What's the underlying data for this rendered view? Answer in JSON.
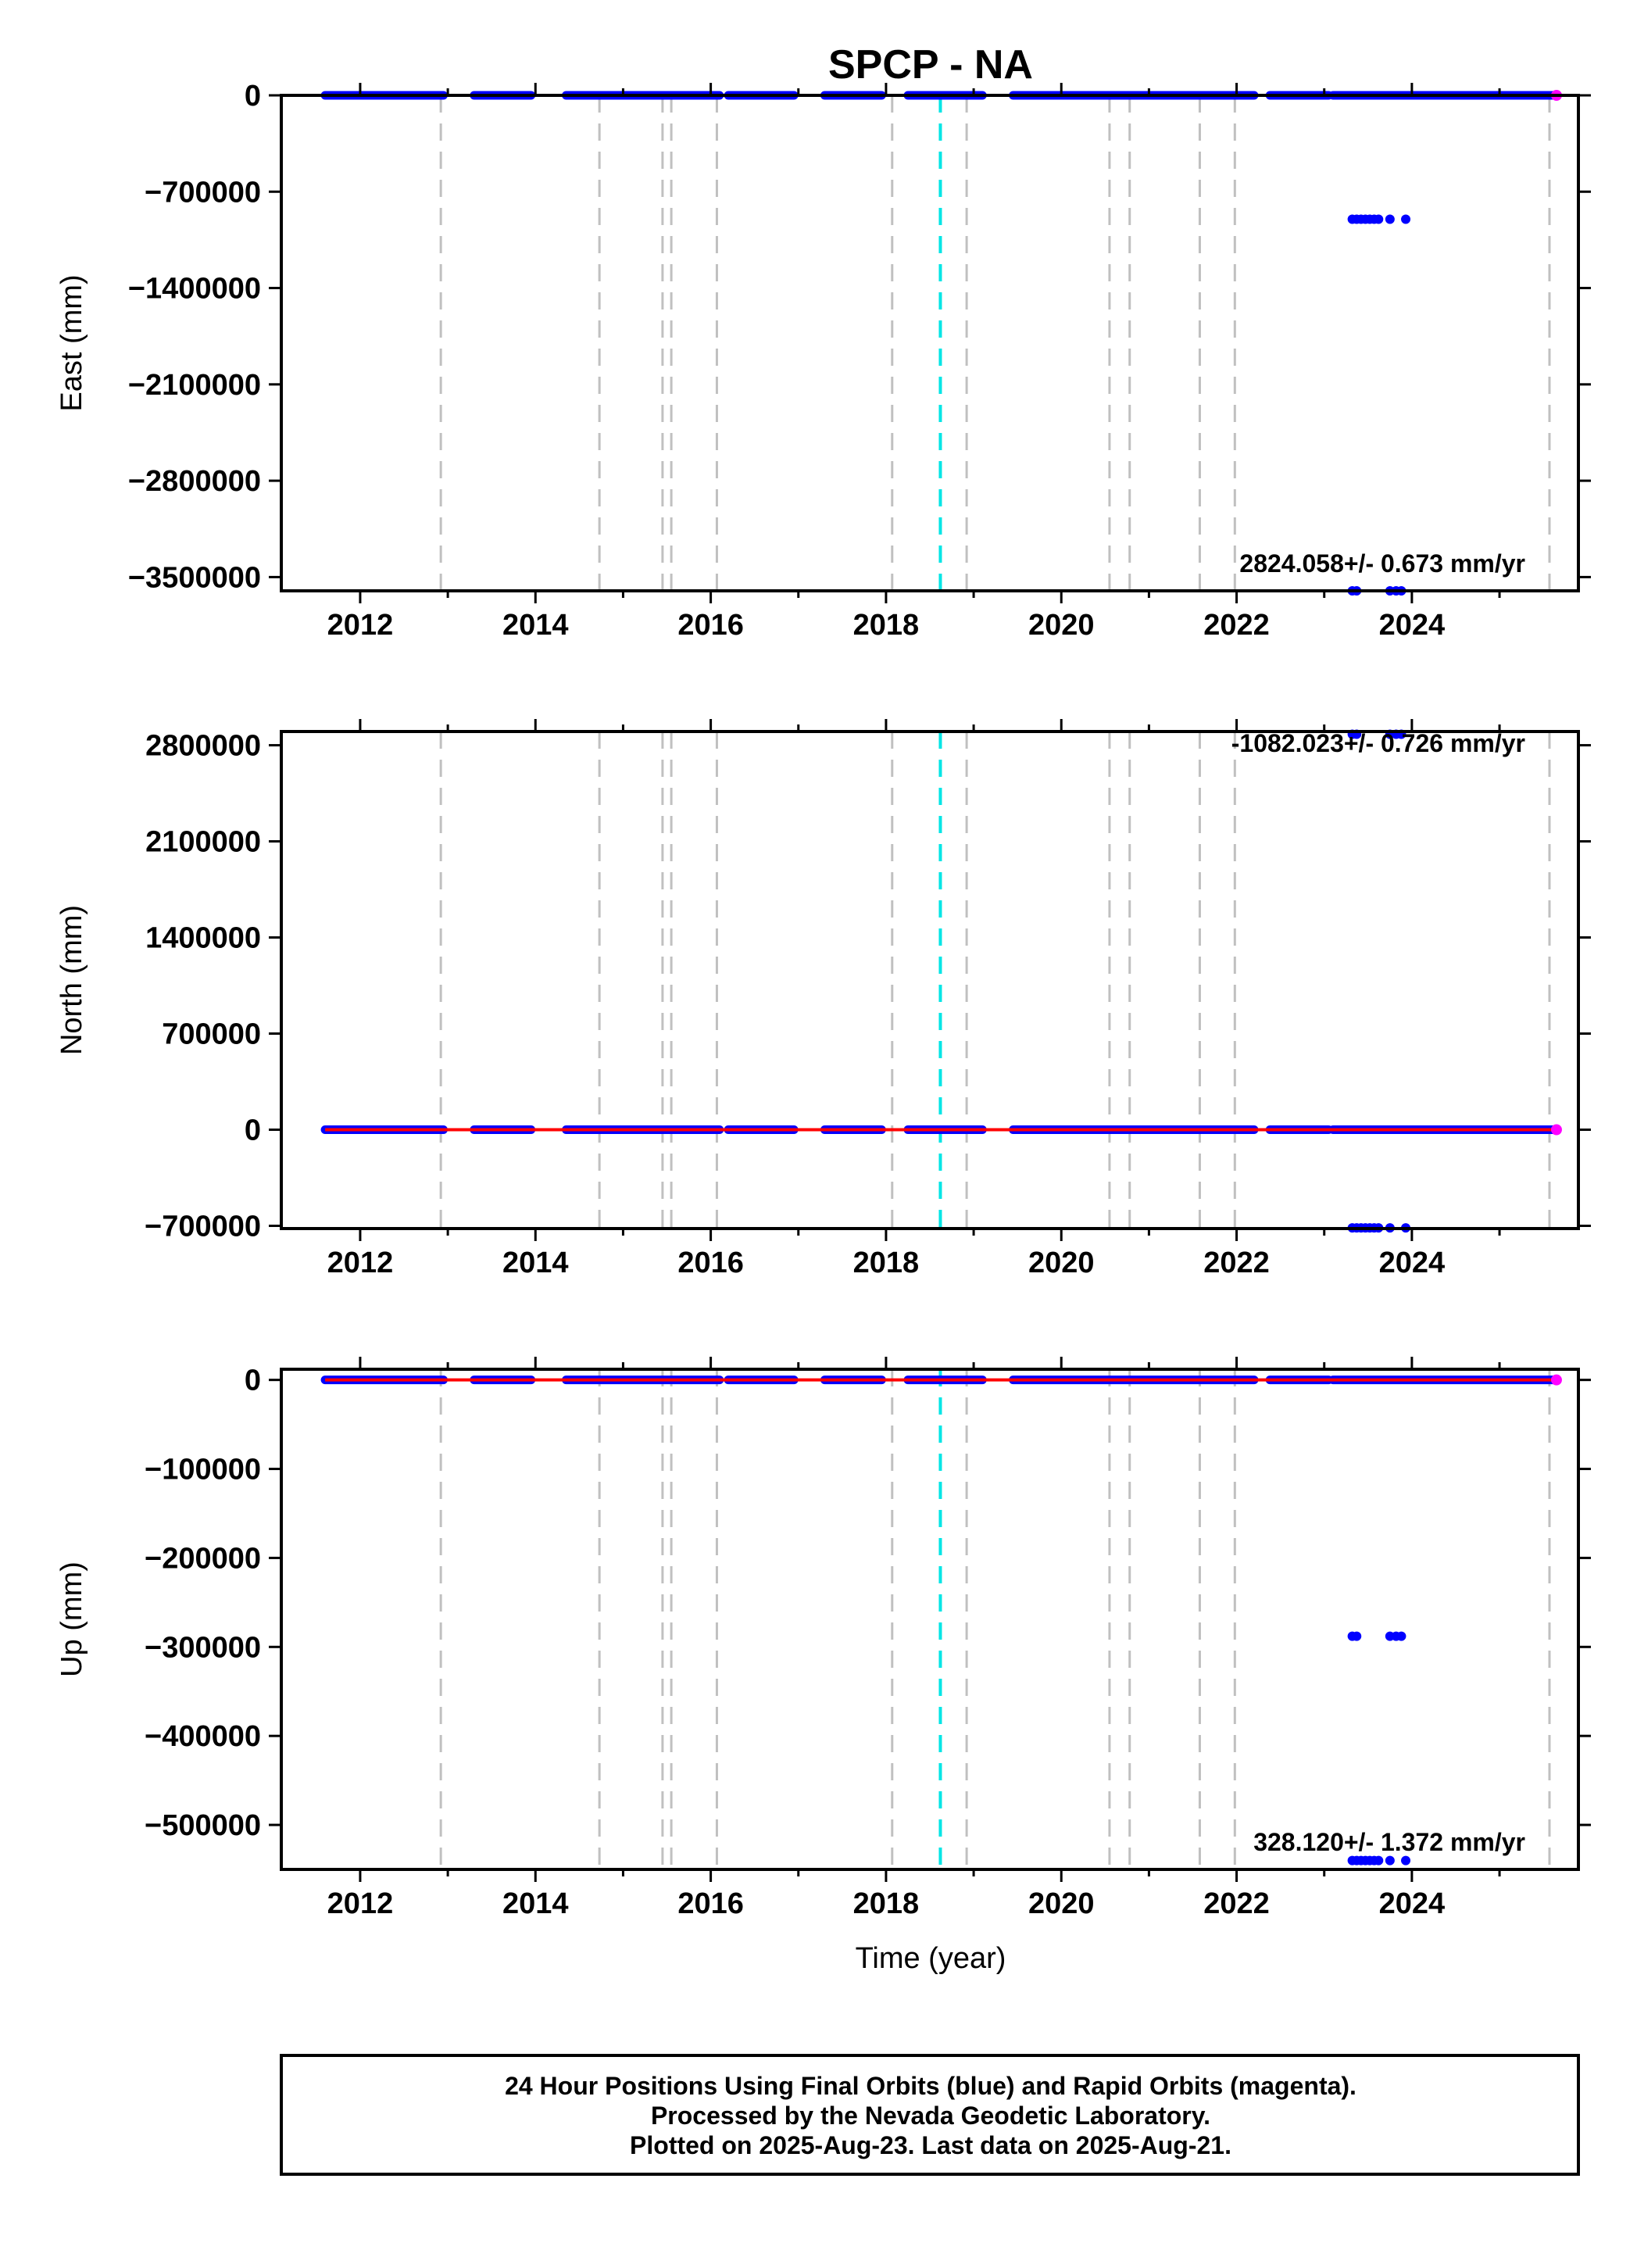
{
  "chart_data": {
    "type": "scatter",
    "title": "SPCP - NA",
    "xlabel": "Time (year)",
    "x_ticks": [
      2012,
      2014,
      2016,
      2018,
      2020,
      2022,
      2024
    ],
    "xlim": [
      2011.1,
      2025.9
    ],
    "data_span": [
      2011.6,
      2025.65
    ],
    "segments": [
      [
        2011.6,
        2012.95
      ],
      [
        2013.3,
        2013.95
      ],
      [
        2014.35,
        2016.1
      ],
      [
        2016.2,
        2016.95
      ],
      [
        2017.3,
        2017.95
      ],
      [
        2018.25,
        2019.1
      ],
      [
        2019.45,
        2022.2
      ],
      [
        2022.38,
        2023.05
      ],
      [
        2023.1,
        2025.65
      ]
    ],
    "event_lines": {
      "gray": [
        2012.92,
        2014.73,
        2015.45,
        2015.55,
        2016.07,
        2018.07,
        2018.92,
        2020.55,
        2020.78,
        2021.58,
        2021.98,
        2025.57
      ],
      "cyan": [
        2018.62
      ]
    },
    "panels": [
      {
        "id": "east",
        "ylabel": "East (mm)",
        "ylim": [
          -3600000,
          0
        ],
        "y_ticks": [
          0,
          -700000,
          -1400000,
          -2100000,
          -2800000,
          -3500000
        ],
        "y_tick_labels": [
          "0",
          "−700000",
          "−1400000",
          "−2100000",
          "−2800000",
          "−3500000"
        ],
        "rate_text": "2824.058+/- 0.673 mm/yr",
        "outliers": [
          {
            "t": 2023.32,
            "v": -900000
          },
          {
            "t": 2023.37,
            "v": -900000
          },
          {
            "t": 2023.42,
            "v": -900000
          },
          {
            "t": 2023.47,
            "v": -900000
          },
          {
            "t": 2023.52,
            "v": -900000
          },
          {
            "t": 2023.57,
            "v": -900000
          },
          {
            "t": 2023.62,
            "v": -900000
          },
          {
            "t": 2023.75,
            "v": -900000
          },
          {
            "t": 2023.93,
            "v": -900000
          },
          {
            "t": 2023.32,
            "v": -3600000
          },
          {
            "t": 2023.37,
            "v": -3600000
          },
          {
            "t": 2023.75,
            "v": -3600000
          },
          {
            "t": 2023.82,
            "v": -3600000
          },
          {
            "t": 2023.88,
            "v": -3600000
          }
        ]
      },
      {
        "id": "north",
        "ylabel": "North (mm)",
        "ylim": [
          -720000,
          2900000
        ],
        "y_ticks": [
          2800000,
          2100000,
          1400000,
          700000,
          0,
          -700000
        ],
        "y_tick_labels": [
          "2800000",
          "2100000",
          "1400000",
          "700000",
          "0",
          "−700000"
        ],
        "rate_text": "-1082.023+/- 0.726 mm/yr",
        "outliers": [
          {
            "t": 2023.32,
            "v": 2880000
          },
          {
            "t": 2023.37,
            "v": 2880000
          },
          {
            "t": 2023.75,
            "v": 2880000
          },
          {
            "t": 2023.82,
            "v": 2880000
          },
          {
            "t": 2023.88,
            "v": 2880000
          },
          {
            "t": 2023.32,
            "v": -715000
          },
          {
            "t": 2023.37,
            "v": -715000
          },
          {
            "t": 2023.42,
            "v": -715000
          },
          {
            "t": 2023.47,
            "v": -715000
          },
          {
            "t": 2023.52,
            "v": -715000
          },
          {
            "t": 2023.57,
            "v": -715000
          },
          {
            "t": 2023.62,
            "v": -715000
          },
          {
            "t": 2023.75,
            "v": -715000
          },
          {
            "t": 2023.93,
            "v": -715000
          }
        ]
      },
      {
        "id": "up",
        "ylabel": "Up (mm)",
        "ylim": [
          -550000,
          12000
        ],
        "y_ticks": [
          0,
          -100000,
          -200000,
          -300000,
          -400000,
          -500000
        ],
        "y_tick_labels": [
          "0",
          "−100000",
          "−200000",
          "−300000",
          "−400000",
          "−500000"
        ],
        "rate_text": "328.120+/- 1.372 mm/yr",
        "outliers": [
          {
            "t": 2023.32,
            "v": -288000
          },
          {
            "t": 2023.37,
            "v": -288000
          },
          {
            "t": 2023.75,
            "v": -288000
          },
          {
            "t": 2023.82,
            "v": -288000
          },
          {
            "t": 2023.88,
            "v": -288000
          },
          {
            "t": 2023.32,
            "v": -540000
          },
          {
            "t": 2023.37,
            "v": -540000
          },
          {
            "t": 2023.42,
            "v": -540000
          },
          {
            "t": 2023.47,
            "v": -540000
          },
          {
            "t": 2023.52,
            "v": -540000
          },
          {
            "t": 2023.57,
            "v": -540000
          },
          {
            "t": 2023.62,
            "v": -540000
          },
          {
            "t": 2023.75,
            "v": -540000
          },
          {
            "t": 2023.93,
            "v": -540000
          }
        ]
      }
    ],
    "colors": {
      "final_orbits": "#0000ff",
      "rapid_orbits": "#ff00ff",
      "trend": "#ff0000",
      "offset_line": "#c0c0c0",
      "event_line": "#00e5e5"
    }
  },
  "footer": {
    "line1": "24 Hour Positions Using Final Orbits (blue) and Rapid Orbits (magenta).",
    "line2": "Processed by the Nevada Geodetic Laboratory.",
    "line3": "Plotted on 2025-Aug-23. Last data on 2025-Aug-21."
  }
}
